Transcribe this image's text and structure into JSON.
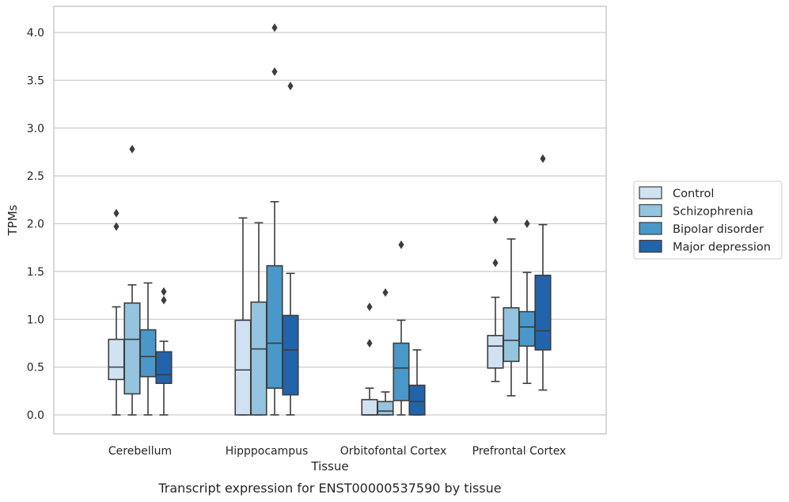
{
  "chart_data": {
    "type": "box",
    "xlabel": "Tissue",
    "ylabel": "TPMs",
    "caption": "Transcript expression for ENST00000537590 by tissue",
    "ylim": [
      -0.2,
      4.25
    ],
    "yticks": [
      "0.0",
      "0.5",
      "1.0",
      "1.5",
      "2.0",
      "2.5",
      "3.0",
      "3.5",
      "4.0"
    ],
    "grid": "horizontal",
    "legend_position": "right",
    "categories": [
      "Cerebellum",
      "Hipppocampus",
      "Orbitofontal Cortex",
      "Prefrontal Cortex"
    ],
    "series": [
      {
        "name": "Control",
        "color": "#d0e1f2",
        "boxes": [
          {
            "whislo": 0.0,
            "q1": 0.37,
            "med": 0.5,
            "q3": 0.79,
            "whishi": 1.13,
            "fliers": [
              1.97,
              2.11
            ]
          },
          {
            "whislo": 0.0,
            "q1": 0.0,
            "med": 0.47,
            "q3": 0.99,
            "whishi": 2.06,
            "fliers": []
          },
          {
            "whislo": 0.0,
            "q1": 0.0,
            "med": 0.0,
            "q3": 0.16,
            "whishi": 0.28,
            "fliers": [
              0.75,
              1.13
            ]
          },
          {
            "whislo": 0.35,
            "q1": 0.49,
            "med": 0.72,
            "q3": 0.83,
            "whishi": 1.23,
            "fliers": [
              1.59,
              2.04
            ]
          }
        ]
      },
      {
        "name": "Schizophrenia",
        "color": "#94c4df",
        "boxes": [
          {
            "whislo": 0.0,
            "q1": 0.22,
            "med": 0.79,
            "q3": 1.17,
            "whishi": 1.36,
            "fliers": [
              2.78
            ]
          },
          {
            "whislo": 0.0,
            "q1": 0.0,
            "med": 0.69,
            "q3": 1.18,
            "whishi": 2.01,
            "fliers": []
          },
          {
            "whislo": 0.0,
            "q1": 0.0,
            "med": 0.04,
            "q3": 0.14,
            "whishi": 0.24,
            "fliers": [
              1.28
            ]
          },
          {
            "whislo": 0.2,
            "q1": 0.56,
            "med": 0.78,
            "q3": 1.12,
            "whishi": 1.84,
            "fliers": []
          }
        ]
      },
      {
        "name": "Bipolar disorder",
        "color": "#4a98c9",
        "boxes": [
          {
            "whislo": 0.0,
            "q1": 0.4,
            "med": 0.61,
            "q3": 0.89,
            "whishi": 1.38,
            "fliers": []
          },
          {
            "whislo": 0.0,
            "q1": 0.28,
            "med": 0.75,
            "q3": 1.56,
            "whishi": 2.23,
            "fliers": [
              3.59,
              4.05
            ]
          },
          {
            "whislo": 0.0,
            "q1": 0.15,
            "med": 0.49,
            "q3": 0.75,
            "whishi": 0.99,
            "fliers": [
              1.78
            ]
          },
          {
            "whislo": 0.33,
            "q1": 0.72,
            "med": 0.92,
            "q3": 1.08,
            "whishi": 1.49,
            "fliers": [
              2.0
            ]
          }
        ]
      },
      {
        "name": "Major depression",
        "color": "#2164ab",
        "boxes": [
          {
            "whislo": 0.0,
            "q1": 0.33,
            "med": 0.42,
            "q3": 0.66,
            "whishi": 0.77,
            "fliers": [
              1.2,
              1.29
            ]
          },
          {
            "whislo": 0.0,
            "q1": 0.21,
            "med": 0.68,
            "q3": 1.04,
            "whishi": 1.48,
            "fliers": [
              3.44
            ]
          },
          {
            "whislo": 0.0,
            "q1": 0.0,
            "med": 0.14,
            "q3": 0.31,
            "whishi": 0.68,
            "fliers": []
          },
          {
            "whislo": 0.26,
            "q1": 0.68,
            "med": 0.88,
            "q3": 1.46,
            "whishi": 1.99,
            "fliers": [
              2.68
            ]
          }
        ]
      }
    ]
  }
}
